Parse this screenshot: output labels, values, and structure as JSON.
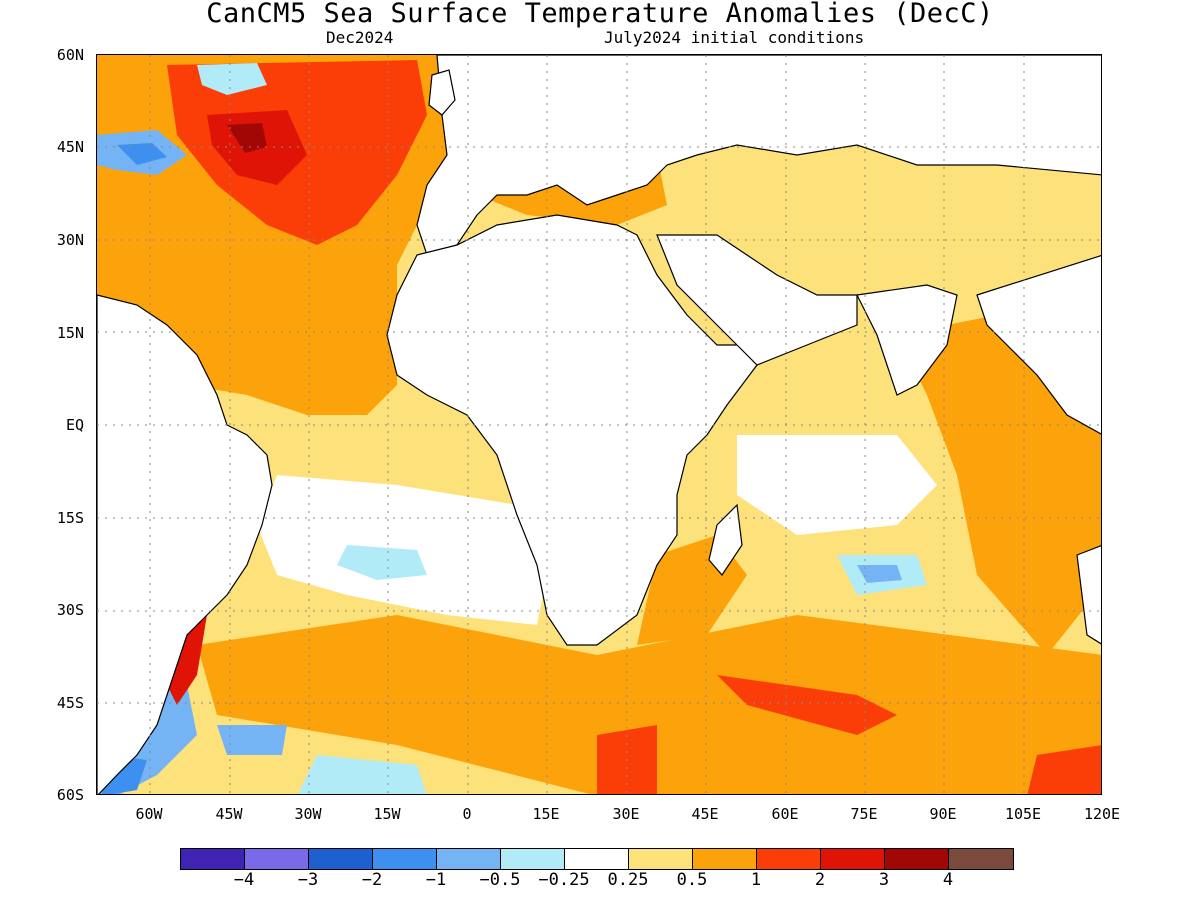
{
  "title": "CanCM5 Sea Surface Temperature Anomalies (DecC)",
  "subtitle_left": "Dec2024",
  "subtitle_right": "July2024 initial conditions",
  "lat_labels": [
    "60N",
    "45N",
    "30N",
    "15N",
    "EQ",
    "15S",
    "30S",
    "45S",
    "60S"
  ],
  "lon_labels": [
    "60W",
    "45W",
    "30W",
    "15W",
    "0",
    "15E",
    "30E",
    "45E",
    "60E",
    "75E",
    "90E",
    "105E",
    "120E"
  ],
  "colorbar": {
    "colors": [
      "#3f23b3",
      "#7a6ae8",
      "#1f60cf",
      "#3d8ff0",
      "#74b4f5",
      "#b1ebf7",
      "#ffffff",
      "#fde27b",
      "#fca20a",
      "#fb3d07",
      "#df1306",
      "#a10704",
      "#7a4b3c"
    ],
    "labels": [
      "−4",
      "−3",
      "−2",
      "−1",
      "−0.5",
      "−0.25",
      "0.25",
      "0.5",
      "1",
      "2",
      "3",
      "4"
    ]
  }
}
